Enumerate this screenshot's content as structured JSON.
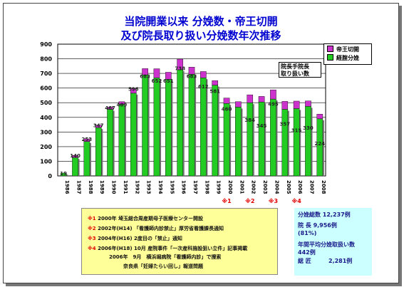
{
  "title_line1": "当院開業以来 分娩数・帝王切開",
  "title_line2": "及び院長取り扱い分娩数年次推移",
  "chart_data": {
    "type": "bar",
    "stacked": true,
    "categories": [
      "1986",
      "1987",
      "1988",
      "1989",
      "1990",
      "1991",
      "1992",
      "1993",
      "1994",
      "1995",
      "1996",
      "1997",
      "1998",
      "1999",
      "2000",
      "2001",
      "2002",
      "2003",
      "2004",
      "2005",
      "2006",
      "2007",
      "2008"
    ],
    "series": [
      {
        "name": "経腟分娩",
        "color": "#22cc22",
        "values": [
          19,
          125,
          235,
          330,
          455,
          489,
          565,
          690,
          670,
          660,
          725,
          695,
          670,
          620,
          495,
          470,
          500,
          505,
          525,
          455,
          460,
          475,
          390
        ]
      },
      {
        "name": "帝王切開",
        "color": "#cc33cc",
        "values": [
          0,
          15,
          18,
          17,
          15,
          18,
          31,
          43,
          62,
          48,
          73,
          48,
          43,
          31,
          37,
          37,
          54,
          38,
          63,
          54,
          51,
          37,
          32
        ]
      }
    ],
    "value_labels": [
      "19",
      "140",
      "253",
      "347",
      "467",
      "489",
      "596",
      "683",
      "652",
      "651",
      "738",
      "683",
      "612",
      "581",
      "460",
      "",
      "384",
      "345",
      "495",
      "357",
      "315",
      "330",
      "224"
    ],
    "value_label_values": [
      19,
      140,
      253,
      347,
      467,
      489,
      596,
      683,
      652,
      651,
      738,
      683,
      612,
      581,
      460,
      0,
      384,
      345,
      495,
      357,
      315,
      330,
      224
    ],
    "ylim": [
      0,
      900
    ],
    "yticks": [
      0,
      100,
      200,
      300,
      400,
      500,
      600,
      700,
      800,
      900
    ],
    "grid": true,
    "legend": "top-right",
    "markers": [
      {
        "category": "2000",
        "text": "※1"
      },
      {
        "category": "2002",
        "text": "※2"
      },
      {
        "category": "2004",
        "text": "※3"
      },
      {
        "category": "2006",
        "text": "※4"
      }
    ]
  },
  "inner_label": "院長手院長\n取り扱い数",
  "notes": [
    {
      "mark": "※1",
      "text": "2000年 埼玉総合周産期母子医療センター開設"
    },
    {
      "mark": "※2",
      "text": "2002年(H14) 「看護師内診禁止」厚労省看護課長通知"
    },
    {
      "mark": "※3",
      "text": "2004年(H16) 2度目の「禁止」通知"
    },
    {
      "mark": "※4",
      "text": "2006年(H18) 10月 産院事件「一次産科施設狙い立件」記事掲載"
    },
    {
      "mark": "",
      "text": "2006年　9月　横浜堀病院「看護師内診」で捜索"
    },
    {
      "mark": "",
      "text": "奈良県「妊婦たらい回し」報道問題"
    }
  ],
  "stats": {
    "total": "分娩総数 12,237例",
    "director": "院 長 9,956例",
    "director_pct": "(81%)",
    "avg_label": "年間平均分娩取扱い数",
    "avg_value": "442例",
    "deaths_label": "総 匠",
    "deaths_value": "2,281例"
  }
}
